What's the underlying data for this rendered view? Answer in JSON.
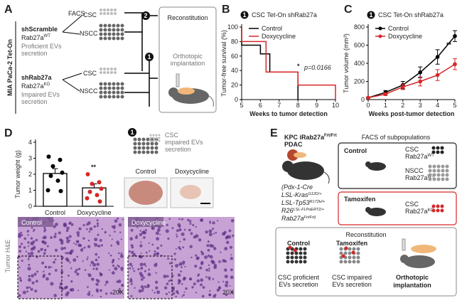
{
  "panel_labels": [
    "A",
    "B",
    "C",
    "D",
    "E"
  ],
  "panel_a": {
    "side_label": "MIA PaCa-2 Tet-On",
    "facs": "FACS",
    "groups": [
      {
        "name": "shScramble",
        "gene": "Rab27a",
        "gene_sup": "WT",
        "description": [
          "Proficient EVs",
          "secretion"
        ]
      },
      {
        "name": "shRab27a",
        "gene": "Rab27a",
        "gene_sup": "KO",
        "description": [
          "Impaired EVs",
          "secretion"
        ]
      }
    ],
    "fractions": [
      "CSC",
      "NSCC",
      "CSC",
      "NSCC"
    ],
    "steps": [
      "2",
      "1"
    ],
    "box": {
      "title": "Reconstitution",
      "text": [
        "Orthotopic",
        "implantation"
      ]
    }
  },
  "chart_data": [
    {
      "type": "line",
      "title": "CSC Tet-On shRab27a",
      "step_marker": "1",
      "xlabel": "Weeks to tumor detection",
      "ylabel": "Tumor-free survival (%)",
      "xlim": [
        5,
        10
      ],
      "xticks": [
        5,
        6,
        7,
        8,
        9,
        10
      ],
      "ylim": [
        0,
        100
      ],
      "yticks": [
        0,
        20,
        40,
        60,
        80,
        100
      ],
      "series": [
        {
          "name": "Control",
          "color": "#000000",
          "x": [
            5,
            5,
            6,
            6,
            6.5,
            6.5,
            8,
            8
          ],
          "values": [
            100,
            75,
            75,
            63,
            63,
            38,
            38,
            0
          ]
        },
        {
          "name": "Doxycycline",
          "color": "#d62728",
          "x": [
            5,
            5,
            6.3,
            6.3,
            8,
            8,
            10,
            10
          ],
          "values": [
            100,
            80,
            80,
            38,
            38,
            20,
            20,
            0
          ]
        }
      ],
      "annotations": [
        "*",
        "p=0.0166"
      ]
    },
    {
      "type": "line",
      "title": "CSC Tet-On shRab27a",
      "step_marker": "1",
      "xlabel": "Weeks post-tumor detection",
      "ylabel": "Tumor volume (mm³)",
      "x": [
        0,
        1,
        2,
        3,
        4,
        5
      ],
      "xlim": [
        0,
        5
      ],
      "xticks": [
        0,
        1,
        2,
        3,
        4,
        5
      ],
      "ylim": [
        0,
        800
      ],
      "yticks": [
        0,
        200,
        400,
        600,
        800
      ],
      "series": [
        {
          "name": "Control",
          "color": "#000000",
          "values": [
            20,
            80,
            160,
            300,
            470,
            700
          ],
          "errors": [
            5,
            20,
            40,
            60,
            80,
            60
          ]
        },
        {
          "name": "Doxycycline",
          "color": "#d62728",
          "values": [
            20,
            60,
            140,
            200,
            270,
            390
          ],
          "errors": [
            5,
            15,
            30,
            50,
            60,
            60
          ]
        }
      ],
      "annotations": [
        "**"
      ]
    },
    {
      "type": "bar",
      "ylabel": "Tumor weight (g)",
      "categories": [
        "Control",
        "Doxycycline"
      ],
      "values": [
        2.05,
        1.15
      ],
      "errors": [
        0.3,
        0.25
      ],
      "ylim": [
        0,
        4
      ],
      "yticks": [
        0,
        1,
        2,
        3,
        4
      ],
      "points": [
        [
          3.1,
          2.9,
          2.5,
          2.1,
          1.9,
          1.6,
          1.0,
          0.95
        ],
        [
          2.0,
          1.5,
          1.4,
          1.1,
          0.9,
          0.7,
          0.5,
          0.3
        ]
      ],
      "point_colors": [
        "#000000",
        "#d62728"
      ],
      "annotations": [
        "**"
      ]
    }
  ],
  "panel_d": {
    "step": "1",
    "cells_text": [
      "CSC",
      "impaired EVs",
      "secretion"
    ],
    "photo_labels": [
      "Control",
      "Doxycycline"
    ],
    "histology_label": "Tumor H&E",
    "histology_titles": [
      "Control",
      "Doxycycline"
    ],
    "magnification": [
      "20X",
      "20X"
    ]
  },
  "panel_e": {
    "title": "KPC iRab27a",
    "title_sup": "Frt/Frt",
    "organ": "PDAC",
    "genotype": [
      {
        "text": "(Pdx-1-Cre"
      },
      {
        "text": "LSL-Kras",
        "sup": "G12D/+"
      },
      {
        "text": "LSL-Tp53",
        "sup": "R172H/+"
      },
      {
        "text": "R26",
        "sup": "LSL-FLPoERT2/+"
      },
      {
        "text": "Rab27a",
        "sup": "Frt/Frt)"
      }
    ],
    "facs_title": "FACS of subpopulations",
    "control_box": {
      "title": "Control",
      "rows": [
        {
          "cell": "CSC",
          "gene": "Rab27a",
          "sup": "WT"
        },
        {
          "cell": "NSCC",
          "gene": "Rab27a",
          "sup": "WT"
        }
      ]
    },
    "tamoxifen_box": {
      "title": "Tamoxifen",
      "cell": "CSC",
      "gene": "Rab27a",
      "sup": "KO"
    },
    "reconstitution": {
      "title": "Reconstitution",
      "groups": [
        {
          "title": "Control",
          "text": [
            "CSC proficient",
            "EVs secretion"
          ]
        },
        {
          "title": "Tamoxifen",
          "text": [
            "CSC impaired",
            "EVs secretion"
          ]
        }
      ],
      "implant": [
        "Orthotopic",
        "implantation"
      ]
    }
  }
}
